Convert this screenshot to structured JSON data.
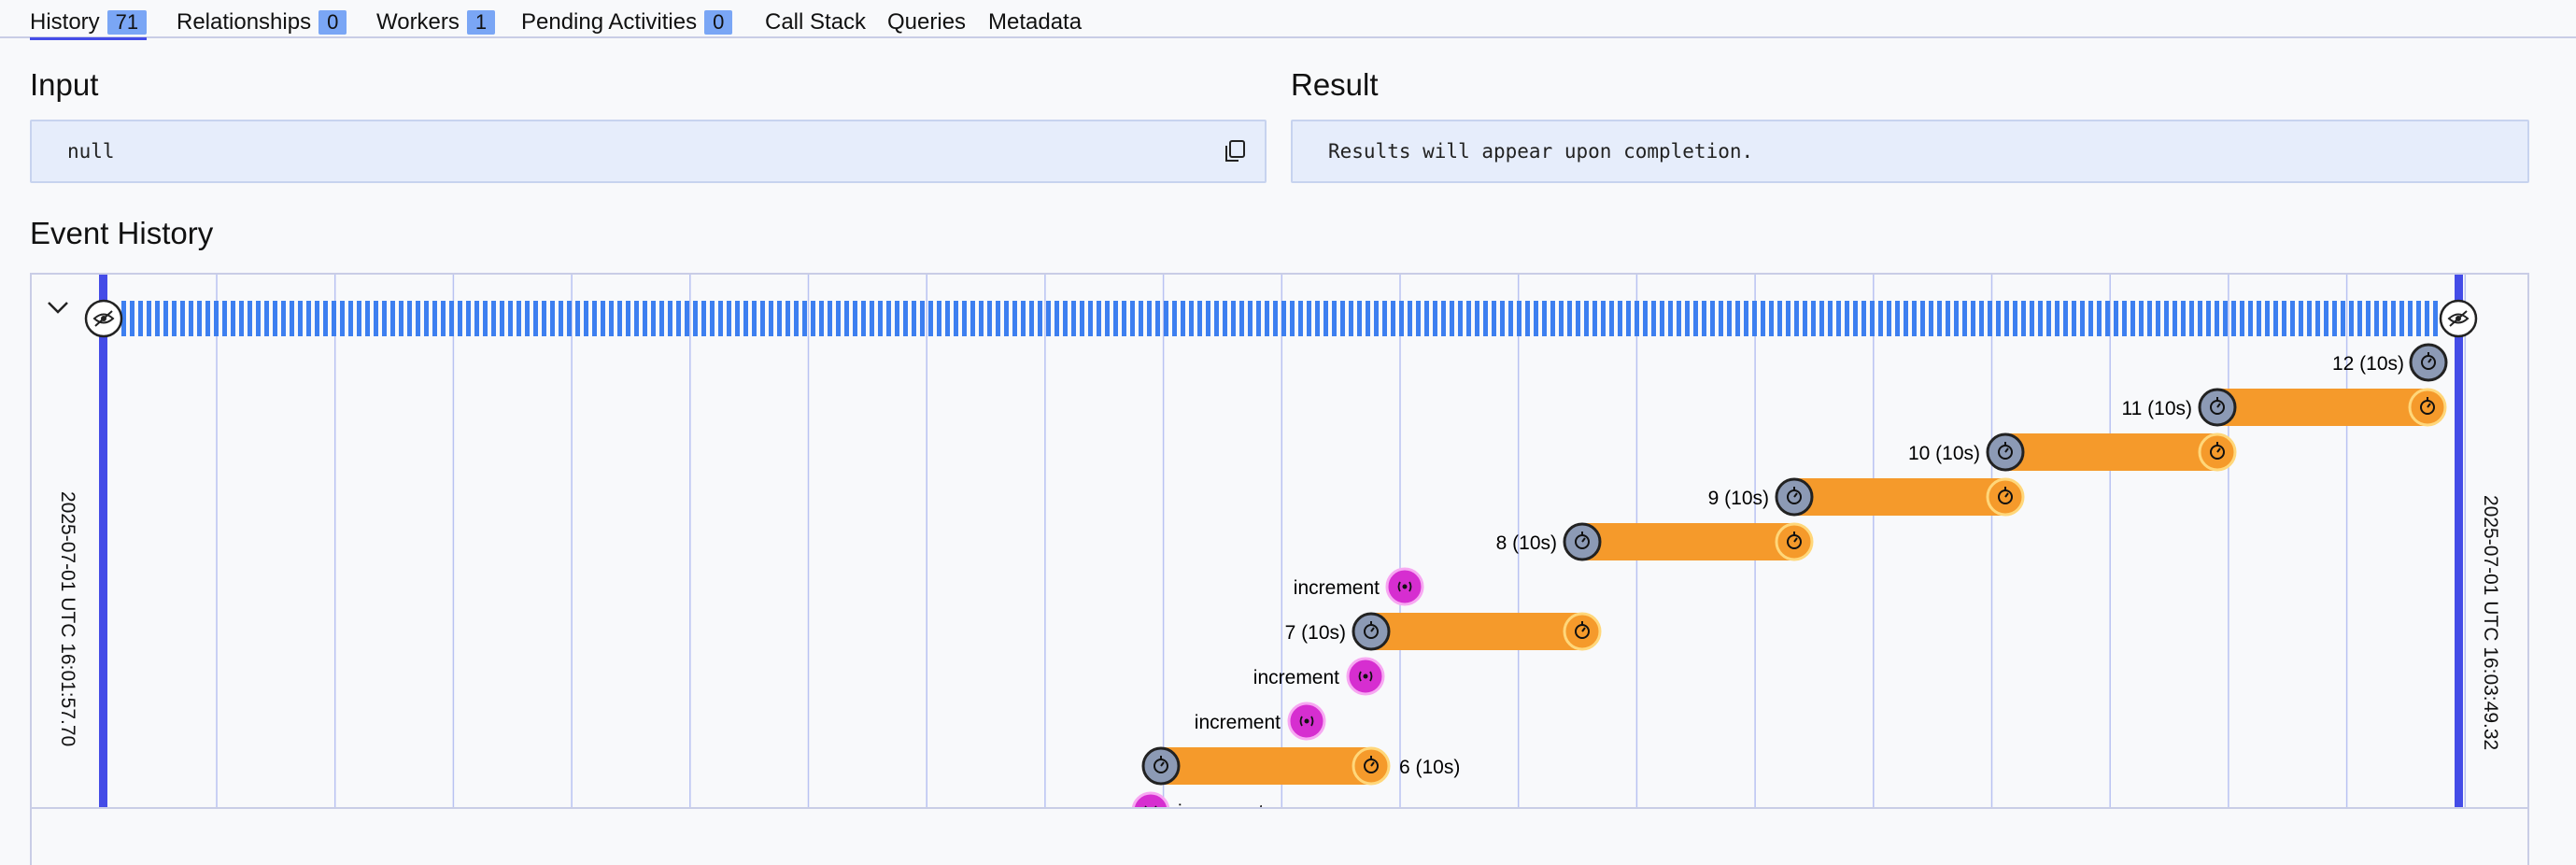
{
  "tabs": [
    {
      "label": "History",
      "badge": "71",
      "active": true
    },
    {
      "label": "Relationships",
      "badge": "0"
    },
    {
      "label": "Workers",
      "badge": "1"
    },
    {
      "label": "Pending Activities",
      "badge": "0"
    },
    {
      "label": "Call Stack"
    },
    {
      "label": "Queries"
    },
    {
      "label": "Metadata"
    }
  ],
  "input": {
    "title": "Input",
    "value": "null"
  },
  "result": {
    "title": "Result",
    "value": "Results will appear upon completion."
  },
  "event_history": {
    "title": "Event History",
    "start_time": "2025-07-01 UTC 16:01:57.70",
    "end_time": "2025-07-01 UTC 16:03:49.32",
    "timers": [
      {
        "label": "12 (10s)"
      },
      {
        "label": "11 (10s)"
      },
      {
        "label": "10 (10s)"
      },
      {
        "label": "9 (10s)"
      },
      {
        "label": "8 (10s)"
      },
      {
        "label": "7 (10s)"
      },
      {
        "label": "6 (10s)"
      }
    ],
    "signals": [
      {
        "label": "increment"
      },
      {
        "label": "increment"
      },
      {
        "label": "increment"
      },
      {
        "label": "increment"
      }
    ]
  },
  "colors": {
    "accent": "#444ce7",
    "badge": "#7aa6f5",
    "timer_bar": "#f59a2b",
    "timer_start": "#8c9ab5",
    "signal": "#d62ed0",
    "history_bar": "#3d7ff0"
  },
  "icons": {
    "copy": "copy-icon",
    "collapse": "chevron-down-icon",
    "endpoint": "eye-icon",
    "timer": "stopwatch-icon",
    "signal": "broadcast-icon"
  }
}
